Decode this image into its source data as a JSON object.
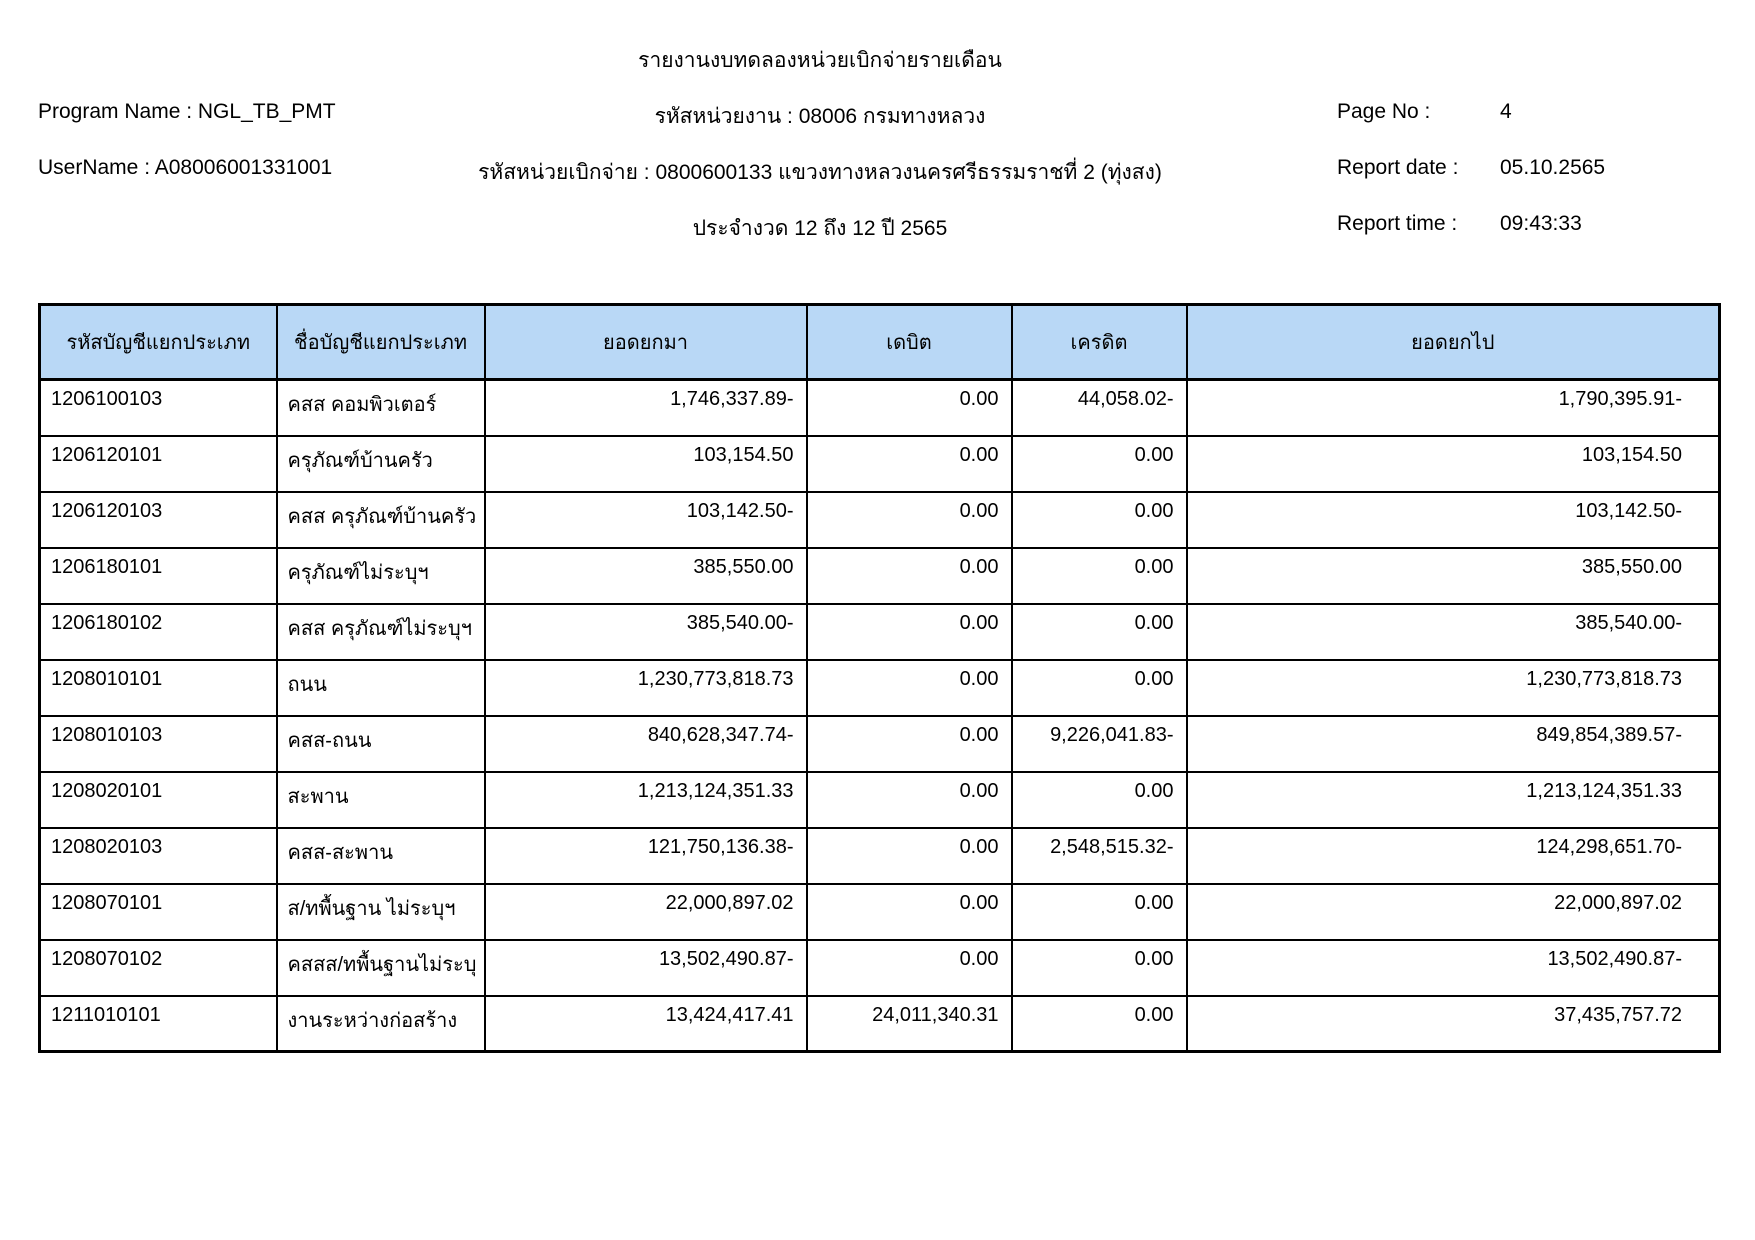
{
  "report": {
    "title": "รายงานงบทดลองหน่วยเบิกจ่ายรายเดือน",
    "program_name_label": "Program Name :",
    "program_name": "NGL_TB_PMT",
    "username_label": "UserName :",
    "username": "A08006001331001",
    "agency_line": "รหัสหน่วยงาน : 08006 กรมทางหลวง",
    "disbursement_unit_line": "รหัสหน่วยเบิกจ่าย : 0800600133 แขวงทางหลวงนครศรีธรรมราชที่ 2 (ทุ่งสง)",
    "period_line": "ประจำงวด 12 ถึง 12 ปี 2565",
    "page_no_label": "Page No :",
    "page_no": "4",
    "report_date_label": "Report date :",
    "report_date": "05.10.2565",
    "report_time_label": "Report time :",
    "report_time": "09:43:33"
  },
  "table": {
    "headers": [
      "รหัสบัญชีแยกประเภท",
      "ชื่อบัญชีแยกประเภท",
      "ยอดยกมา",
      "เดบิต",
      "เครดิต",
      "ยอดยกไป"
    ],
    "rows": [
      [
        "1206100103",
        "คสส คอมพิวเตอร์",
        "1,746,337.89-",
        "0.00",
        "44,058.02-",
        "1,790,395.91-"
      ],
      [
        "1206120101",
        "ครุภัณฑ์บ้านครัว",
        "103,154.50",
        "0.00",
        "0.00",
        "103,154.50"
      ],
      [
        "1206120103",
        "คสส ครุภัณฑ์บ้านครัว",
        "103,142.50-",
        "0.00",
        "0.00",
        "103,142.50-"
      ],
      [
        "1206180101",
        "ครุภัณฑ์ไม่ระบุฯ",
        "385,550.00",
        "0.00",
        "0.00",
        "385,550.00"
      ],
      [
        "1206180102",
        "คสส ครุภัณฑ์ไม่ระบุฯ",
        "385,540.00-",
        "0.00",
        "0.00",
        "385,540.00-"
      ],
      [
        "1208010101",
        "ถนน",
        "1,230,773,818.73",
        "0.00",
        "0.00",
        "1,230,773,818.73"
      ],
      [
        "1208010103",
        "คสส-ถนน",
        "840,628,347.74-",
        "0.00",
        "9,226,041.83-",
        "849,854,389.57-"
      ],
      [
        "1208020101",
        "สะพาน",
        "1,213,124,351.33",
        "0.00",
        "0.00",
        "1,213,124,351.33"
      ],
      [
        "1208020103",
        "คสส-สะพาน",
        "121,750,136.38-",
        "0.00",
        "2,548,515.32-",
        "124,298,651.70-"
      ],
      [
        "1208070101",
        "ส/ทพื้นฐาน ไม่ระบุฯ",
        "22,000,897.02",
        "0.00",
        "0.00",
        "22,000,897.02"
      ],
      [
        "1208070102",
        "คสสส/ทพื้นฐานไม่ระบุ",
        "13,502,490.87-",
        "0.00",
        "0.00",
        "13,502,490.87-"
      ],
      [
        "1211010101",
        "งานระหว่างก่อสร้าง",
        "13,424,417.41",
        "24,011,340.31",
        "0.00",
        "37,435,757.72"
      ]
    ]
  },
  "colors": {
    "table_header_bg": "#b9d8f6",
    "border": "#000000"
  }
}
